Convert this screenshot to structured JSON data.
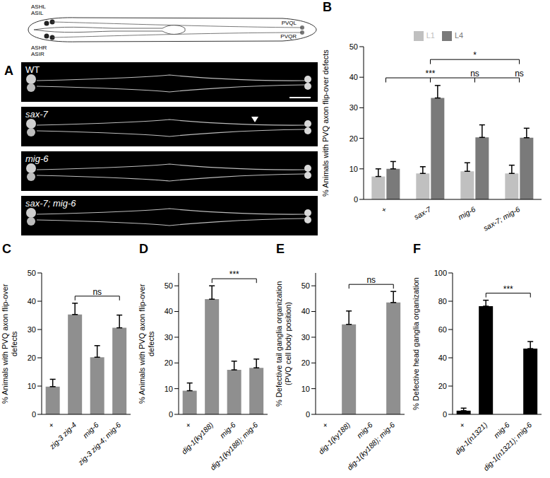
{
  "panel_A": {
    "panel": "A",
    "neuron_labels": [
      "ASHL",
      "ASIL",
      "ASHR",
      "ASIR",
      "PVQL",
      "PVQR"
    ],
    "images": [
      "WT",
      "sax-7",
      "mig-6",
      "sax-7; mig-6"
    ]
  },
  "chart_data": [
    {
      "panel": "B",
      "type": "bar",
      "ylabel": "% Animals with PVQ axon flip-over defects",
      "categories": [
        "+",
        "sax-7",
        "mig-6",
        "sax-7; mig-6"
      ],
      "series": [
        {
          "name": "L1",
          "color": "#c0c0c0",
          "values": [
            7.5,
            8.5,
            9.2,
            8.5
          ],
          "errors": [
            2.5,
            2.2,
            2.8,
            2.7
          ]
        },
        {
          "name": "L4",
          "color": "#7a7a7a",
          "values": [
            10,
            33.2,
            20.3,
            20.2
          ],
          "errors": [
            2.4,
            4.1,
            4.1,
            3.1
          ]
        }
      ],
      "ylim": [
        0,
        50
      ],
      "yticks": [
        0,
        10,
        20,
        30,
        40,
        50
      ],
      "grid": false,
      "legend": "top",
      "comparisons": [
        {
          "from": "+",
          "to": "sax-7",
          "label": "***"
        },
        {
          "from": "+",
          "to": "mig-6",
          "label": "ns"
        },
        {
          "from": "+",
          "to": "sax-7; mig-6",
          "label": "ns"
        },
        {
          "from": "sax-7",
          "to": "sax-7; mig-6",
          "label": "*"
        }
      ]
    },
    {
      "panel": "C",
      "type": "bar",
      "ylabel": "% Animals with PVQ axon flip-over defects",
      "categories": [
        "+",
        "zig-3 zig-4",
        "mig-6",
        "zig-3 zig-4; mig-6"
      ],
      "values": [
        9.8,
        35.3,
        20.2,
        30.6
      ],
      "errors": [
        2.6,
        4,
        4.1,
        4.5
      ],
      "color": "#8f8f8f",
      "ylim": [
        0,
        50
      ],
      "yticks": [
        0,
        10,
        20,
        30,
        40,
        50
      ],
      "grid": false,
      "comparisons": [
        {
          "from": "zig-3 zig-4",
          "to": "zig-3 zig-4; mig-6",
          "label": "ns"
        }
      ]
    },
    {
      "panel": "D",
      "type": "bar",
      "ylabel": "% Animals with PVQ axon flip-over defects",
      "categories": [
        "+",
        "dig-1(ky188)",
        "mig-6",
        "dig-1(ky188); mig-6"
      ],
      "values": [
        9.2,
        44.8,
        17.3,
        18.1
      ],
      "errors": [
        3,
        5.2,
        3.4,
        3.4
      ],
      "color": "#8f8f8f",
      "ylim": [
        0,
        55
      ],
      "yticks": [
        0,
        10,
        20,
        30,
        40,
        50
      ],
      "grid": false,
      "comparisons": [
        {
          "from": "dig-1(ky188)",
          "to": "dig-1(ky188); mig-6",
          "label": "***"
        }
      ]
    },
    {
      "panel": "E",
      "type": "bar",
      "ylabel": "% Defective tail ganglia organization (PVQ cell body position)",
      "categories": [
        "+",
        "dig-1(ky188)",
        "mig-6",
        "dig-1(ky188); mig-6"
      ],
      "values": [
        0,
        35,
        0,
        43.5
      ],
      "errors": [
        null,
        5.2,
        null,
        4.3
      ],
      "color": "#8f8f8f",
      "marker": "triangle",
      "ylim": [
        0,
        55
      ],
      "yticks": [
        0,
        10,
        20,
        30,
        40,
        50
      ],
      "grid": false,
      "comparisons": [
        {
          "from": "dig-1(ky188)",
          "to": "dig-1(ky188); mig-6",
          "label": "ns"
        }
      ]
    },
    {
      "panel": "F",
      "type": "bar",
      "ylabel": "% Defective head ganglia organization",
      "categories": [
        "+",
        "dig-1(n1321)",
        "mig-6",
        "dig-1(n1321); mig-6"
      ],
      "values": [
        2.6,
        76.5,
        0,
        46.5
      ],
      "errors": [
        1.8,
        4.2,
        null,
        5
      ],
      "color": "#000000",
      "marker": "triangle",
      "ylim": [
        0,
        100
      ],
      "yticks": [
        0,
        20,
        40,
        60,
        80,
        100
      ],
      "grid": false,
      "comparisons": [
        {
          "from": "dig-1(n1321)",
          "to": "dig-1(n1321); mig-6",
          "label": "***"
        }
      ]
    }
  ]
}
